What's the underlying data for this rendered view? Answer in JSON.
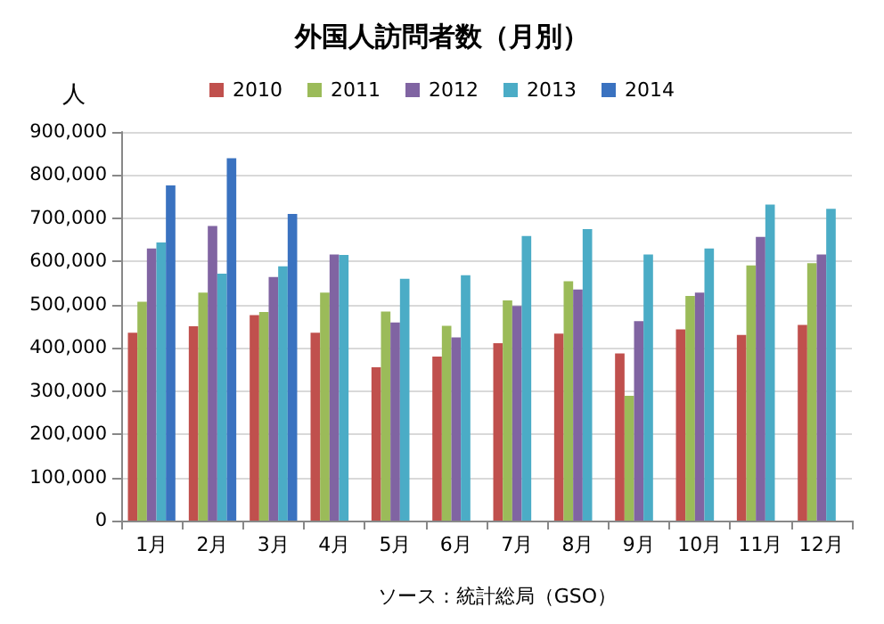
{
  "chart_data": {
    "type": "bar",
    "title": "外国人訪問者数（月別）",
    "ylabel": "人",
    "categories": [
      "1月",
      "2月",
      "3月",
      "4月",
      "5月",
      "6月",
      "7月",
      "8月",
      "9月",
      "10月",
      "11月",
      "12月"
    ],
    "series": [
      {
        "name": "2010",
        "color": "#c0504d",
        "values": [
          435000,
          450000,
          476000,
          435000,
          355000,
          380000,
          411000,
          433000,
          387000,
          443000,
          430000,
          453000
        ]
      },
      {
        "name": "2011",
        "color": "#9bbb59",
        "values": [
          507000,
          528000,
          483000,
          528000,
          484000,
          451000,
          510000,
          554000,
          289000,
          520000,
          591000,
          596000
        ]
      },
      {
        "name": "2012",
        "color": "#8064a2",
        "values": [
          630000,
          682000,
          564000,
          616000,
          459000,
          424000,
          497000,
          535000,
          462000,
          528000,
          657000,
          616000
        ]
      },
      {
        "name": "2013",
        "color": "#4bacc6",
        "values": [
          644000,
          572000,
          589000,
          615000,
          560000,
          568000,
          659000,
          675000,
          616000,
          630000,
          732000,
          722000
        ]
      },
      {
        "name": "2014",
        "color": "#3a72c0",
        "values": [
          776000,
          839000,
          710000,
          null,
          null,
          null,
          null,
          null,
          null,
          null,
          null,
          null
        ]
      }
    ],
    "ylim": [
      0,
      900000
    ],
    "yticks": [
      0,
      {
        "value": 100000,
        "label": "100,000"
      },
      {
        "value": 200000,
        "label": "200,000"
      },
      {
        "value": 300000,
        "label": "300,000"
      },
      {
        "value": 400000,
        "label": "400,000"
      },
      {
        "value": 500000,
        "label": "500,000"
      },
      {
        "value": 600000,
        "label": "600,000"
      },
      {
        "value": 700000,
        "label": "700,000"
      },
      {
        "value": 800000,
        "label": "800,000"
      },
      {
        "value": 900000,
        "label": "900,000"
      }
    ],
    "grid": "y",
    "legend": "top",
    "annotations": [
      "ソース：統計総局（GSO）"
    ]
  }
}
